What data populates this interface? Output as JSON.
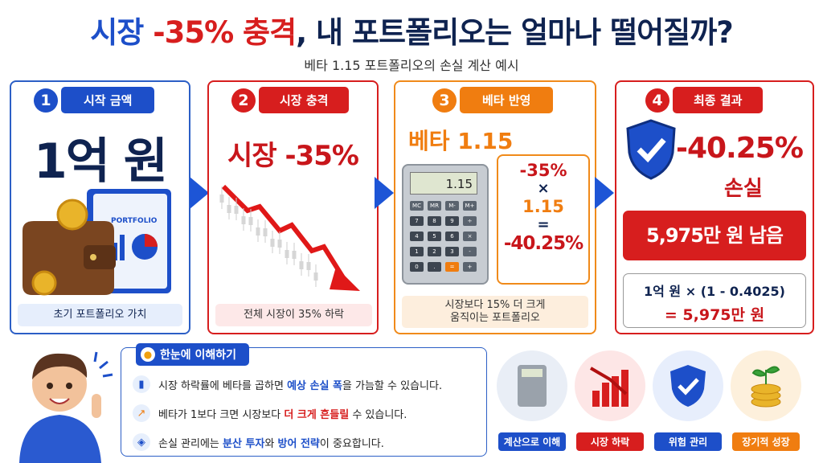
{
  "header": {
    "title": [
      "시장",
      " -35% 충격",
      ", 내 포트폴리오는 얼마나 떨어질까?"
    ],
    "subtitle": "베타 1.15 포트폴리오의 손실 계산 예시"
  },
  "steps": [
    {
      "number": "1",
      "label": "시작 금액",
      "headline": "1억 원",
      "book_label": "PORTFOLIO",
      "caption": "초기 포트폴리오 가치"
    },
    {
      "number": "2",
      "label": "시장 충격",
      "headline": "시장 -35%",
      "caption": "전체 시장이 35% 하락"
    },
    {
      "number": "3",
      "label": "베타 반영",
      "headline": "베타 1.15",
      "calculator": {
        "display": "1.15",
        "keys": [
          "MC",
          "MR",
          "M-",
          "M+",
          "7",
          "8",
          "9",
          "÷",
          "4",
          "5",
          "6",
          "×",
          "1",
          "2",
          "3",
          "-",
          "0",
          ".",
          "=",
          "+"
        ]
      },
      "formula": [
        "-35%",
        "×",
        "1.15",
        "=",
        "-40.25%"
      ],
      "caption": [
        "시장보다 15% 더 크게",
        "움직이는 포트폴리오"
      ]
    },
    {
      "number": "4",
      "label": "최종 결과",
      "headline": "-40.25%",
      "sub_headline": "손실",
      "result": "5,975만 원 남음",
      "formula": [
        "1억 원 × (1 - 0.4025)",
        "= 5,975만 원"
      ]
    }
  ],
  "tips": {
    "title": "한눈에 이해하기",
    "items": [
      [
        "시장 하락률에 베타를 곱하면 ",
        "예상 손실 폭",
        "을 가늠할 수 있습니다."
      ],
      [
        "베타가 1보다 크면 시장보다 ",
        "더 크게 흔들릴",
        " 수 있습니다."
      ],
      [
        "손실 관리에는 ",
        "분산 투자",
        "와 ",
        "방어 전략",
        "이 중요합니다."
      ]
    ]
  },
  "icons": [
    "계산으로 이해",
    "시장 하락",
    "위험 관리",
    "장기적 성장"
  ]
}
